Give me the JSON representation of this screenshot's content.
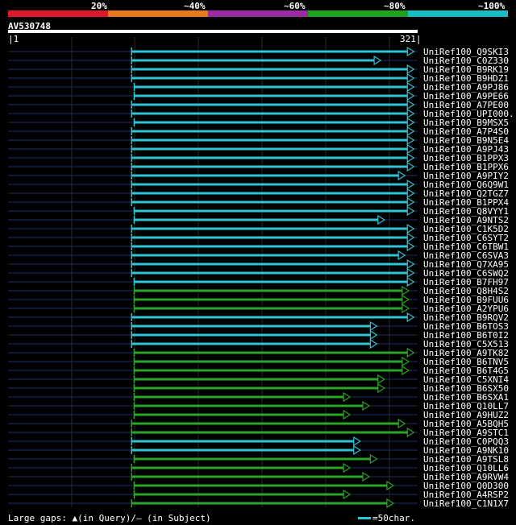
{
  "scale": {
    "labels": [
      "20%",
      "~40%",
      "~60%",
      "~80%",
      "~100%"
    ],
    "colors": [
      "#e0182c",
      "#e57a1e",
      "#9c2aa0",
      "#1fa31f",
      "#19bcc4"
    ]
  },
  "query": {
    "id": "AV530748",
    "start": "1",
    "end": "321"
  },
  "colors": {
    "cyan": "#2ec4d6",
    "green": "#2aa52a",
    "faint": "#1c2f66"
  },
  "chart_data": {
    "type": "alignment",
    "query_length": 321,
    "hits": [
      {
        "label": "UniRef100_Q9SKI3",
        "start": 97,
        "end": 318,
        "color": "cyan"
      },
      {
        "label": "UniRef100_C0Z330",
        "start": 97,
        "end": 292,
        "color": "cyan"
      },
      {
        "label": "UniRef100_B9RK19",
        "start": 97,
        "end": 318,
        "color": "cyan"
      },
      {
        "label": "UniRef100_B9HDZ1",
        "start": 97,
        "end": 318,
        "color": "cyan"
      },
      {
        "label": "UniRef100_A9PJ86",
        "start": 99,
        "end": 318,
        "color": "cyan"
      },
      {
        "label": "UniRef100_A9PE66",
        "start": 99,
        "end": 318,
        "color": "cyan"
      },
      {
        "label": "UniRef100_A7PE00",
        "start": 97,
        "end": 318,
        "color": "cyan"
      },
      {
        "label": "UniRef100_UPI000..",
        "start": 97,
        "end": 318,
        "color": "cyan"
      },
      {
        "label": "UniRef100_B9MSX5",
        "start": 99,
        "end": 318,
        "color": "cyan"
      },
      {
        "label": "UniRef100_A7P4S0",
        "start": 97,
        "end": 318,
        "color": "cyan"
      },
      {
        "label": "UniRef100_B9N5E4",
        "start": 97,
        "end": 318,
        "color": "cyan"
      },
      {
        "label": "UniRef100_A9PJ43",
        "start": 97,
        "end": 318,
        "color": "cyan"
      },
      {
        "label": "UniRef100_B1PPX3",
        "start": 97,
        "end": 318,
        "color": "cyan"
      },
      {
        "label": "UniRef100_B1PPX6",
        "start": 97,
        "end": 318,
        "color": "cyan"
      },
      {
        "label": "UniRef100_A9PIY2",
        "start": 97,
        "end": 311,
        "color": "cyan"
      },
      {
        "label": "UniRef100_Q6Q9W1",
        "start": 97,
        "end": 318,
        "color": "cyan"
      },
      {
        "label": "UniRef100_Q2TGZ7",
        "start": 97,
        "end": 318,
        "color": "cyan"
      },
      {
        "label": "UniRef100_B1PPX4",
        "start": 97,
        "end": 318,
        "color": "cyan"
      },
      {
        "label": "UniRef100_Q8VYY1",
        "start": 99,
        "end": 318,
        "color": "cyan"
      },
      {
        "label": "UniRef100_A9NTS2",
        "start": 99,
        "end": 295,
        "color": "cyan"
      },
      {
        "label": "UniRef100_C1K5D2",
        "start": 97,
        "end": 318,
        "color": "cyan"
      },
      {
        "label": "UniRef100_C6SYT2",
        "start": 97,
        "end": 318,
        "color": "cyan"
      },
      {
        "label": "UniRef100_C6TBW1",
        "start": 97,
        "end": 318,
        "color": "cyan"
      },
      {
        "label": "UniRef100_C6SVA3",
        "start": 97,
        "end": 311,
        "color": "cyan"
      },
      {
        "label": "UniRef100_Q7XA95",
        "start": 97,
        "end": 318,
        "color": "cyan"
      },
      {
        "label": "UniRef100_C6SWQ2",
        "start": 97,
        "end": 318,
        "color": "cyan"
      },
      {
        "label": "UniRef100_B7FH97",
        "start": 99,
        "end": 318,
        "color": "cyan"
      },
      {
        "label": "UniRef100_Q8H4S2",
        "start": 99,
        "end": 314,
        "color": "green"
      },
      {
        "label": "UniRef100_B9FUU6",
        "start": 99,
        "end": 314,
        "color": "green"
      },
      {
        "label": "UniRef100_A2YPU6",
        "start": 99,
        "end": 314,
        "color": "green"
      },
      {
        "label": "UniRef100_B9RQV2",
        "start": 97,
        "end": 318,
        "color": "cyan"
      },
      {
        "label": "UniRef100_B6TOS3",
        "start": 97,
        "end": 289,
        "color": "cyan"
      },
      {
        "label": "UniRef100_B6T0I2",
        "start": 97,
        "end": 289,
        "color": "cyan"
      },
      {
        "label": "UniRef100_C5X513",
        "start": 97,
        "end": 289,
        "color": "cyan"
      },
      {
        "label": "UniRef100_A9TK82",
        "start": 99,
        "end": 318,
        "color": "green"
      },
      {
        "label": "UniRef100_B6TNV5",
        "start": 99,
        "end": 314,
        "color": "green"
      },
      {
        "label": "UniRef100_B6T4G5",
        "start": 99,
        "end": 314,
        "color": "green"
      },
      {
        "label": "UniRef100_C5XNI4",
        "start": 99,
        "end": 295,
        "color": "green"
      },
      {
        "label": "UniRef100_B6SX50",
        "start": 99,
        "end": 295,
        "color": "green"
      },
      {
        "label": "UniRef100_B6SXA1",
        "start": 99,
        "end": 268,
        "color": "green"
      },
      {
        "label": "UniRef100_Q10LL7",
        "start": 99,
        "end": 283,
        "color": "green"
      },
      {
        "label": "UniRef100_A9HUZ2",
        "start": 99,
        "end": 268,
        "color": "green"
      },
      {
        "label": "UniRef100_A5BQH5",
        "start": 97,
        "end": 311,
        "color": "green"
      },
      {
        "label": "UniRef100_A9STC1",
        "start": 97,
        "end": 318,
        "color": "green"
      },
      {
        "label": "UniRef100_C0PQQ3",
        "start": 97,
        "end": 276,
        "color": "cyan"
      },
      {
        "label": "UniRef100_A9NK10",
        "start": 97,
        "end": 276,
        "color": "cyan"
      },
      {
        "label": "UniRef100_A9TSL8",
        "start": 99,
        "end": 289,
        "color": "green"
      },
      {
        "label": "UniRef100_Q10LL6",
        "start": 97,
        "end": 268,
        "color": "green"
      },
      {
        "label": "UniRef100_A9RVW4",
        "start": 97,
        "end": 283,
        "color": "green"
      },
      {
        "label": "UniRef100_Q0D300",
        "start": 99,
        "end": 302,
        "color": "green"
      },
      {
        "label": "UniRef100_A4RSP2",
        "start": 99,
        "end": 268,
        "color": "green"
      },
      {
        "label": "UniRef100_C1N1X7",
        "start": 97,
        "end": 302,
        "color": "green"
      }
    ]
  },
  "legend": {
    "left": "Large gaps: ▲(in Query)/— (in Subject)",
    "right": "=50char."
  }
}
